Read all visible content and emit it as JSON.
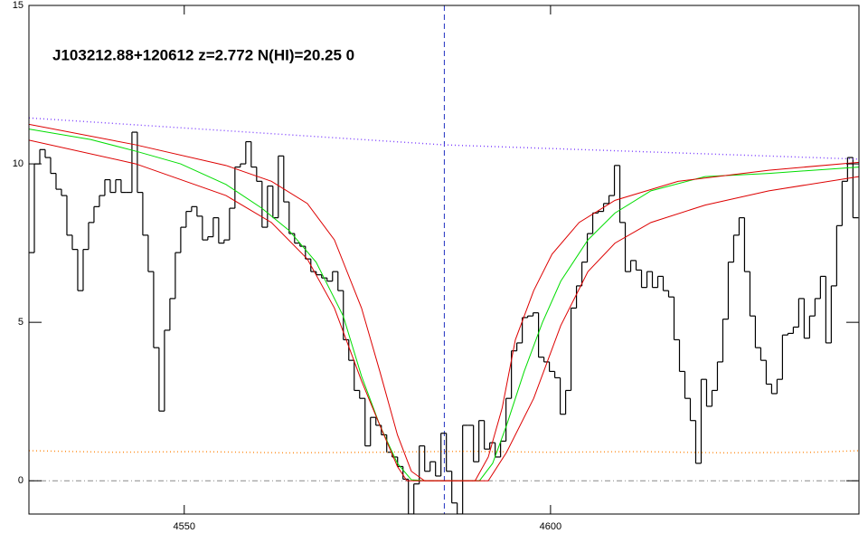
{
  "chart_data": {
    "type": "spectrum",
    "title": "J103212.88+120612 z=2.772 N(HI)=20.25 0",
    "xlim": [
      4528.8,
      4642.1
    ],
    "ylim": [
      -1.05,
      15
    ],
    "xticks": [
      4550,
      4600
    ],
    "yticks": [
      0,
      5,
      10,
      15
    ],
    "hline": 0,
    "vline": 4585.5,
    "series": [
      {
        "style": "step",
        "color": "#000000",
        "x": [
          4528.8,
          4529.54,
          4530.28,
          4531.02,
          4531.76,
          4532.5,
          4533.24,
          4533.98,
          4534.72,
          4535.46,
          4536.2,
          4536.94,
          4537.68,
          4538.42,
          4539.16,
          4539.9,
          4540.64,
          4541.38,
          4542.12,
          4542.86,
          4543.6,
          4544.34,
          4545.08,
          4545.82,
          4546.56,
          4547.3,
          4548.04,
          4548.78,
          4549.52,
          4550.26,
          4551.0,
          4551.74,
          4552.48,
          4553.22,
          4553.96,
          4554.7,
          4555.44,
          4556.18,
          4556.92,
          4557.66,
          4558.4,
          4559.14,
          4559.88,
          4560.62,
          4561.36,
          4562.1,
          4562.84,
          4563.58,
          4564.32,
          4565.06,
          4565.8,
          4566.54,
          4567.28,
          4568.02,
          4568.76,
          4569.5,
          4570.24,
          4570.98,
          4571.72,
          4572.46,
          4573.2,
          4573.94,
          4574.68,
          4575.42,
          4576.16,
          4576.9,
          4577.64,
          4578.38,
          4579.12,
          4579.86,
          4580.6,
          4581.34,
          4582.08,
          4582.82,
          4583.56,
          4584.3,
          4585.04,
          4585.78,
          4586.52,
          4587.26,
          4588.0,
          4588.74,
          4589.48,
          4590.22,
          4590.96,
          4591.7,
          4592.44,
          4593.18,
          4593.92,
          4594.66,
          4595.4,
          4596.14,
          4596.88,
          4597.62,
          4598.36,
          4599.1,
          4599.84,
          4600.58,
          4601.32,
          4602.06,
          4602.8,
          4603.54,
          4604.28,
          4605.02,
          4605.76,
          4606.5,
          4607.24,
          4607.98,
          4608.72,
          4609.46,
          4610.2,
          4610.94,
          4611.68,
          4612.42,
          4613.16,
          4613.9,
          4614.64,
          4615.38,
          4616.12,
          4616.86,
          4617.6,
          4618.34,
          4619.08,
          4619.82,
          4620.56,
          4621.3,
          4622.04,
          4622.78,
          4623.52,
          4624.26,
          4625.0,
          4625.74,
          4626.48,
          4627.22,
          4627.96,
          4628.7,
          4629.44,
          4630.18,
          4630.92,
          4631.66,
          4632.4,
          4633.14,
          4633.88,
          4634.62,
          4635.36,
          4636.1,
          4636.84,
          4637.58,
          4638.32,
          4639.06,
          4639.8,
          4640.54,
          4641.28
        ],
        "values": [
          7.2,
          10.0,
          10.45,
          10.2,
          9.7,
          9.2,
          9.0,
          7.75,
          7.3,
          6.0,
          7.3,
          8.15,
          8.65,
          9.0,
          9.5,
          9.1,
          9.5,
          9.1,
          9.1,
          11.0,
          9.1,
          7.75,
          6.6,
          4.2,
          2.2,
          4.75,
          5.75,
          7.2,
          8.0,
          8.5,
          8.65,
          8.35,
          7.6,
          7.7,
          8.3,
          7.5,
          7.6,
          8.6,
          9.9,
          10.0,
          10.7,
          9.9,
          9.45,
          8.0,
          9.3,
          8.3,
          10.25,
          8.8,
          7.8,
          7.5,
          7.4,
          7.0,
          6.6,
          6.5,
          6.4,
          6.3,
          6.6,
          6.0,
          4.45,
          3.8,
          2.85,
          2.6,
          1.1,
          2.0,
          1.75,
          1.45,
          0.9,
          0.75,
          0.45,
          0.05,
          -1.05,
          -0.1,
          1.1,
          0.3,
          0.6,
          0.15,
          1.5,
          0.3,
          -0.7,
          -1.05,
          1.75,
          1.75,
          0.6,
          1.9,
          1.0,
          1.2,
          0.75,
          1.25,
          2.6,
          4.1,
          4.35,
          5.15,
          5.2,
          5.3,
          3.9,
          3.75,
          3.45,
          3.25,
          2.1,
          2.85,
          5.45,
          6.15,
          6.9,
          7.8,
          8.45,
          8.5,
          8.75,
          9.0,
          9.95,
          8.15,
          6.6,
          6.95,
          6.65,
          6.1,
          6.6,
          6.1,
          6.45,
          6.0,
          5.8,
          4.45,
          3.45,
          2.6,
          1.9,
          0.55,
          3.2,
          2.35,
          2.85,
          3.75,
          5.1,
          6.9,
          7.75,
          8.3,
          6.6,
          5.2,
          4.2,
          3.8,
          3.05,
          2.75,
          3.2,
          4.6,
          4.65,
          4.85,
          5.75,
          4.5,
          5.2,
          5.75,
          6.45,
          4.35,
          6.15,
          8.05,
          9.45,
          10.2,
          8.3
        ]
      },
      {
        "style": "dotted",
        "color": "#7a3cff",
        "x": [
          4528.8,
          4585.5,
          4642.1
        ],
        "values": [
          11.45,
          10.6,
          10.15
        ]
      },
      {
        "style": "dotted",
        "color": "#ff8c1a",
        "x": [
          4528.8,
          4540,
          4552,
          4564,
          4576,
          4588,
          4600,
          4612,
          4624,
          4636,
          4642.1
        ],
        "values": [
          0.95,
          0.9,
          0.92,
          0.88,
          0.9,
          0.93,
          0.9,
          0.92,
          0.88,
          0.9,
          0.95
        ]
      },
      {
        "style": "solid",
        "color": "#00dd00",
        "x": [
          4528.8,
          4537.2,
          4543.4,
          4549.5,
          4555.7,
          4560.6,
          4564.3,
          4568.0,
          4571.7,
          4574.2,
          4576.7,
          4579.1,
          4581.0,
          4582.8,
          4590.3,
          4592.1,
          4594.0,
          4596.4,
          4598.9,
          4601.4,
          4605.1,
          4608.8,
          4613.7,
          4621.1,
          4629.8,
          4642.1
        ],
        "values": [
          11.1,
          10.77,
          10.4,
          10.0,
          9.35,
          8.6,
          7.9,
          6.9,
          5.2,
          3.3,
          1.75,
          0.55,
          0.03,
          0,
          0,
          0.55,
          1.75,
          3.45,
          5.0,
          6.3,
          7.6,
          8.45,
          9.15,
          9.6,
          9.7,
          9.9
        ]
      },
      {
        "style": "solid",
        "color": "#dd0000",
        "x": [
          4528.8,
          4543.4,
          4555.7,
          4561.9,
          4566.8,
          4570.5,
          4574.2,
          4576.7,
          4579.1,
          4581.0,
          4582.8,
          4589.7,
          4591.5,
          4593.4,
          4595.2,
          4597.7,
          4600.2,
          4603.9,
          4608.8,
          4617.4,
          4629.8,
          4642.1
        ],
        "values": [
          11.25,
          10.6,
          9.95,
          9.45,
          8.75,
          7.6,
          5.45,
          3.45,
          1.45,
          0.3,
          0,
          0,
          0.75,
          2.3,
          4.45,
          6.0,
          7.15,
          8.15,
          8.85,
          9.45,
          9.8,
          10.05
        ]
      },
      {
        "style": "solid",
        "color": "#dd0000",
        "x": [
          4528.8,
          4543.4,
          4555.7,
          4561.9,
          4566.8,
          4570.5,
          4574.2,
          4576.7,
          4579.1,
          4580.4,
          4591.5,
          4594.0,
          4597.7,
          4601.4,
          4605.1,
          4608.8,
          4613.7,
          4621.1,
          4629.8,
          4642.1
        ],
        "values": [
          10.75,
          10.0,
          9.0,
          8.15,
          7.0,
          5.45,
          3.15,
          1.75,
          0.45,
          0,
          0,
          0.9,
          2.6,
          4.9,
          6.6,
          7.5,
          8.15,
          8.7,
          9.15,
          9.6
        ]
      }
    ]
  }
}
